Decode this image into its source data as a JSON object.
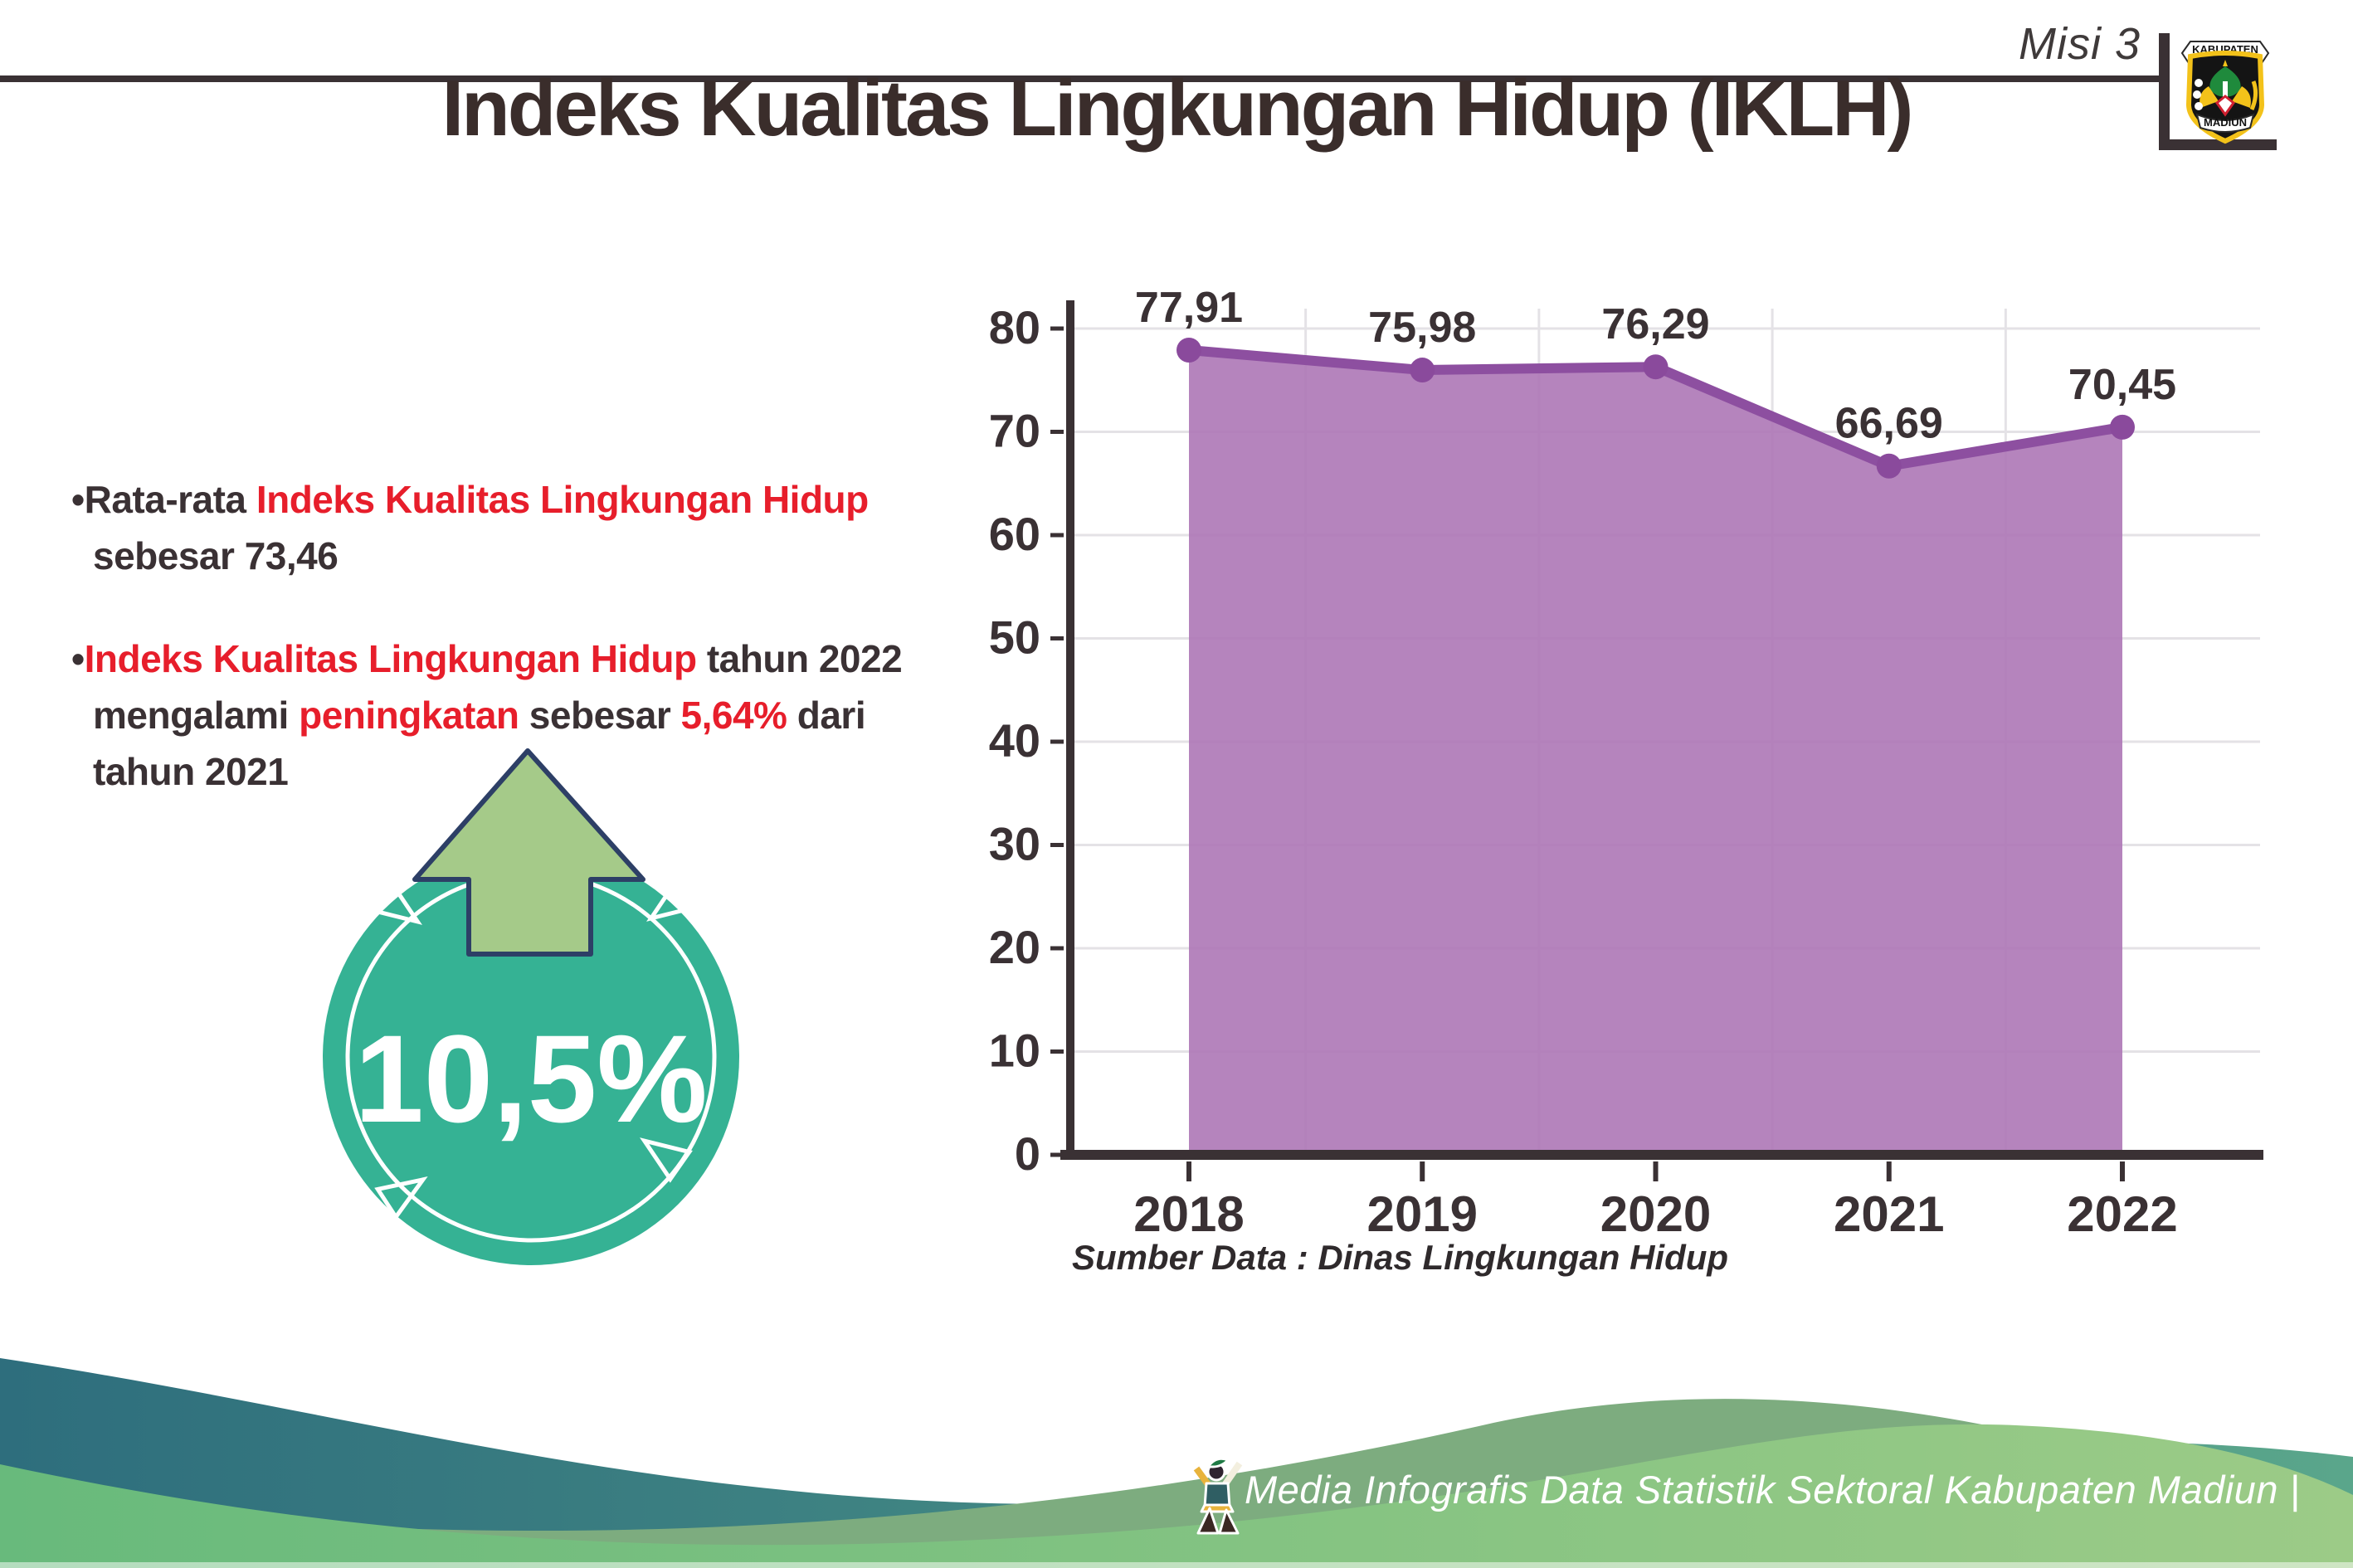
{
  "page": {
    "title": "Indeks Kualitas Lingkungan Hidup (IKLH)"
  },
  "header": {
    "misi_label": "Misi 3",
    "logo": {
      "banner_top": "KABUPATEN",
      "banner_bottom": "MADIUN"
    }
  },
  "bullets": {
    "bullet_char": "•",
    "b1": {
      "dark1": "Rata-rata ",
      "red1": "Indeks Kualitas Lingkungan Hidup",
      "line2": "sebesar 73,46"
    },
    "b2": {
      "red1": "Indeks Kualitas Lingkungan Hidup",
      "dark1": " tahun 2022",
      "dark2": "mengalami ",
      "red2": "peningkatan",
      "dark3": " sebesar ",
      "red3": "5,64%",
      "dark4": " dari",
      "line3": "tahun 2021"
    }
  },
  "badge": {
    "value": "10,5%"
  },
  "chart_data": {
    "type": "area",
    "title": "",
    "categories": [
      "2018",
      "2019",
      "2020",
      "2021",
      "2022"
    ],
    "series": [
      {
        "name": "IKLH",
        "values": [
          77.91,
          75.98,
          76.29,
          66.69,
          70.45
        ]
      }
    ],
    "value_labels": [
      "77,91",
      "75,98",
      "76,29",
      "66,69",
      "70,45"
    ],
    "xlabel": "",
    "ylabel": "",
    "ylim": [
      0,
      80
    ],
    "ytick_step": 10,
    "grid": true,
    "legend": "none",
    "line_color": "#8d4fa0",
    "fill_color": "#ad77b6",
    "marker_color": "#8a4a9c",
    "label_color": "#3a3134",
    "axis_color": "#3a3134",
    "grid_color": "#e4e2e6"
  },
  "source_note": "Sumber Data : Dinas Lingkungan Hidup",
  "footer": {
    "text": "Media Infografis Data Statistik Sektoral Kabupaten Madiun |"
  },
  "colors": {
    "accent_red": "#e71e2b",
    "text_dark": "#3a3134",
    "badge_teal": "#35b294",
    "badge_arrow_green": "#a5ca89",
    "badge_arrow_outline": "#2d3f66",
    "wave_teal_dark": "#2e6e7d",
    "wave_teal_light": "#5aa68b",
    "wave_sage": "#7dac7f",
    "wave_green_dark": "#68ba7c",
    "wave_green_light": "#9ccb87"
  }
}
